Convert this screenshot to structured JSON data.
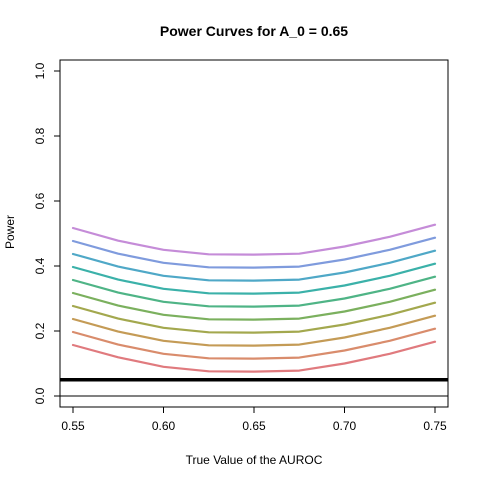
{
  "chart_data": {
    "type": "line",
    "title": "Power Curves for A_0 = 0.65",
    "xlabel": "True Value of the AUROC",
    "ylabel": "Power",
    "xlim": [
      0.55,
      0.75
    ],
    "ylim": [
      0.0,
      1.0
    ],
    "x_ticks": [
      0.55,
      0.6,
      0.65,
      0.7,
      0.75
    ],
    "x_tick_labels": [
      "0.55",
      "0.60",
      "0.65",
      "0.70",
      "0.75"
    ],
    "y_ticks": [
      0.0,
      0.2,
      0.4,
      0.6,
      0.8,
      1.0
    ],
    "y_tick_labels": [
      "0.0",
      "0.2",
      "0.4",
      "0.6",
      "0.8",
      "1.0"
    ],
    "grid": false,
    "legend": "none",
    "reference_lines": [
      {
        "y": 0.05,
        "color": "#000000",
        "style": "thick"
      },
      {
        "y": 0.0,
        "color": "#000000",
        "style": "thin"
      }
    ],
    "x": [
      0.55,
      0.575,
      0.6,
      0.625,
      0.65,
      0.675,
      0.7,
      0.725,
      0.75
    ],
    "series": [
      {
        "color": "#E07A7E",
        "values": [
          0.157,
          0.119,
          0.09,
          0.076,
          0.075,
          0.078,
          0.1,
          0.13,
          0.167
        ]
      },
      {
        "color": "#D98C6C",
        "values": [
          0.197,
          0.158,
          0.13,
          0.116,
          0.115,
          0.118,
          0.14,
          0.17,
          0.207
        ]
      },
      {
        "color": "#C49B56",
        "values": [
          0.237,
          0.198,
          0.17,
          0.156,
          0.155,
          0.158,
          0.18,
          0.21,
          0.247
        ]
      },
      {
        "color": "#A3A84E",
        "values": [
          0.277,
          0.238,
          0.21,
          0.196,
          0.195,
          0.198,
          0.22,
          0.25,
          0.287
        ]
      },
      {
        "color": "#7BB05E",
        "values": [
          0.317,
          0.278,
          0.25,
          0.236,
          0.235,
          0.238,
          0.26,
          0.29,
          0.327
        ]
      },
      {
        "color": "#4FB486",
        "values": [
          0.357,
          0.318,
          0.29,
          0.276,
          0.275,
          0.278,
          0.3,
          0.33,
          0.367
        ]
      },
      {
        "color": "#3BB1A9",
        "values": [
          0.397,
          0.358,
          0.33,
          0.316,
          0.315,
          0.318,
          0.34,
          0.37,
          0.407
        ]
      },
      {
        "color": "#4FA8C7",
        "values": [
          0.437,
          0.398,
          0.37,
          0.356,
          0.355,
          0.358,
          0.38,
          0.41,
          0.447
        ]
      },
      {
        "color": "#7F9BDD",
        "values": [
          0.477,
          0.438,
          0.41,
          0.396,
          0.395,
          0.398,
          0.42,
          0.45,
          0.487
        ]
      },
      {
        "color": "#C58CD8",
        "values": [
          0.517,
          0.478,
          0.45,
          0.436,
          0.435,
          0.438,
          0.46,
          0.49,
          0.527
        ]
      }
    ]
  }
}
